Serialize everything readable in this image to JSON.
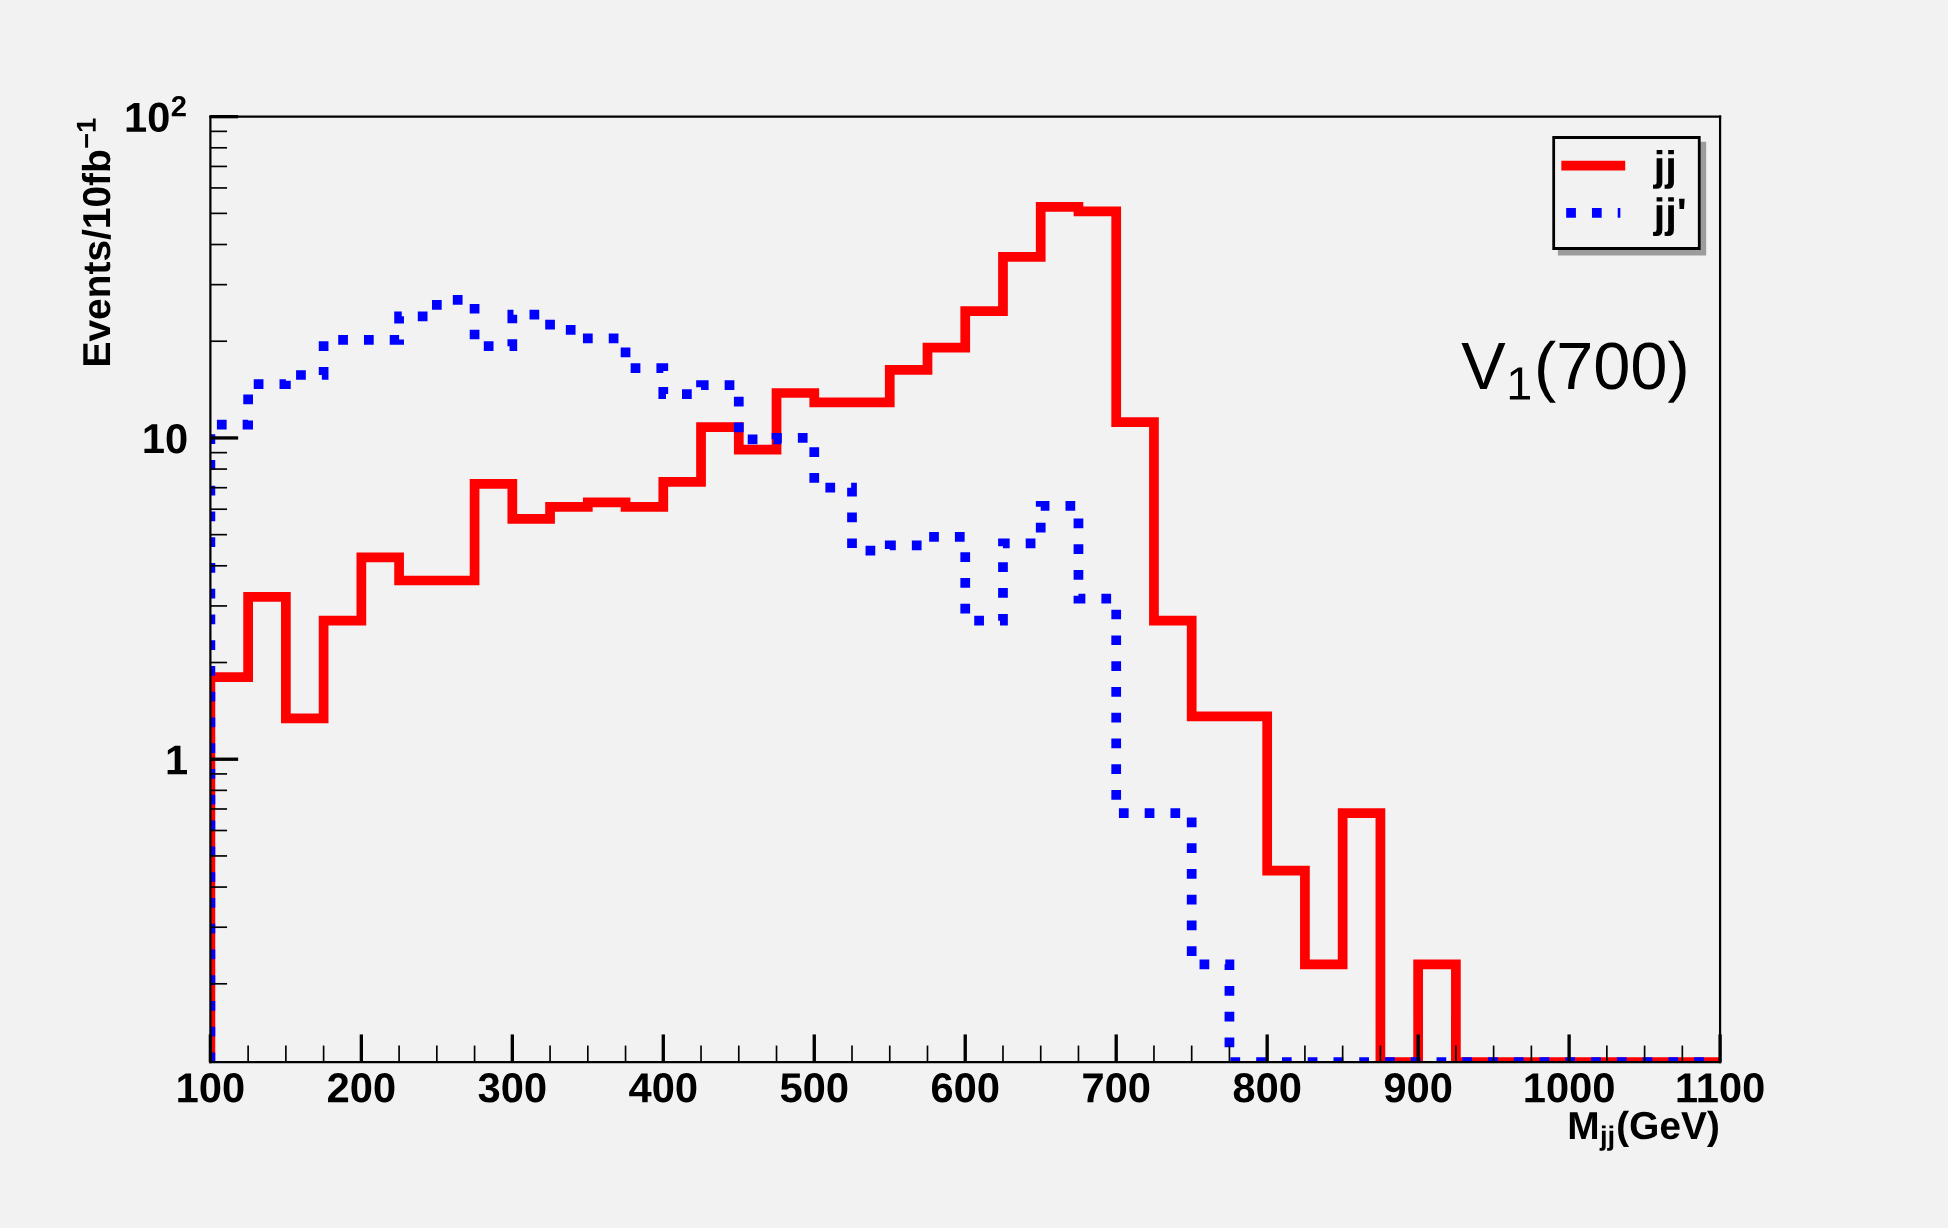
{
  "chart_data": {
    "type": "histogram",
    "ylabel": "Events/10fb$^{−1}$",
    "xlabel": "M$_{jj}$(GeV)",
    "annotations": [
      "V$_{1}$(700)"
    ],
    "bins": [
      100,
      125,
      150,
      175,
      200,
      225,
      250,
      275,
      300,
      325,
      350,
      375,
      400,
      425,
      450,
      475,
      500,
      525,
      550,
      575,
      600,
      625,
      650,
      675,
      700,
      725,
      750,
      775,
      800,
      825,
      850,
      875,
      900,
      925,
      950,
      975,
      1000,
      1025,
      1050,
      1075,
      1100
    ],
    "series": [
      {
        "name": "jj",
        "color": "#ff0000",
        "line_style": "solid",
        "values": [
          1.8,
          3.2,
          1.34,
          2.7,
          4.25,
          3.6,
          3.6,
          7.2,
          5.6,
          6.1,
          6.3,
          6.1,
          7.3,
          10.8,
          9.2,
          13.8,
          12.9,
          12.9,
          16.3,
          19.1,
          24.8,
          36.6,
          52.4,
          50.7,
          11.2,
          2.7,
          1.36,
          1.36,
          0.45,
          0.23,
          0.68,
          null,
          0.23,
          null,
          null,
          null,
          null,
          null,
          null,
          null
        ]
      },
      {
        "name": "jj'",
        "color": "#0000ff",
        "line_style": "dotted",
        "values": [
          11.0,
          14.7,
          15.7,
          20.2,
          20.2,
          23.9,
          26.9,
          19.3,
          24.2,
          21.7,
          20.4,
          16.5,
          13.7,
          14.6,
          9.9,
          10.0,
          7.0,
          4.46,
          4.63,
          4.92,
          2.7,
          4.7,
          6.15,
          3.16,
          0.68,
          0.68,
          0.23,
          null,
          null,
          null,
          null,
          null,
          null,
          null,
          null,
          null,
          null,
          null,
          null,
          null
        ]
      }
    ],
    "log": "y",
    "xlim": [
      100,
      1100
    ],
    "xticks": [
      100,
      200,
      300,
      400,
      500,
      600,
      700,
      800,
      900,
      1000,
      1100
    ],
    "ylim": [
      0.114,
      100
    ],
    "yticks": [
      1,
      10,
      {
        "value": 100,
        "label": "10$^{2}$"
      }
    ],
    "legend": "top right"
  }
}
